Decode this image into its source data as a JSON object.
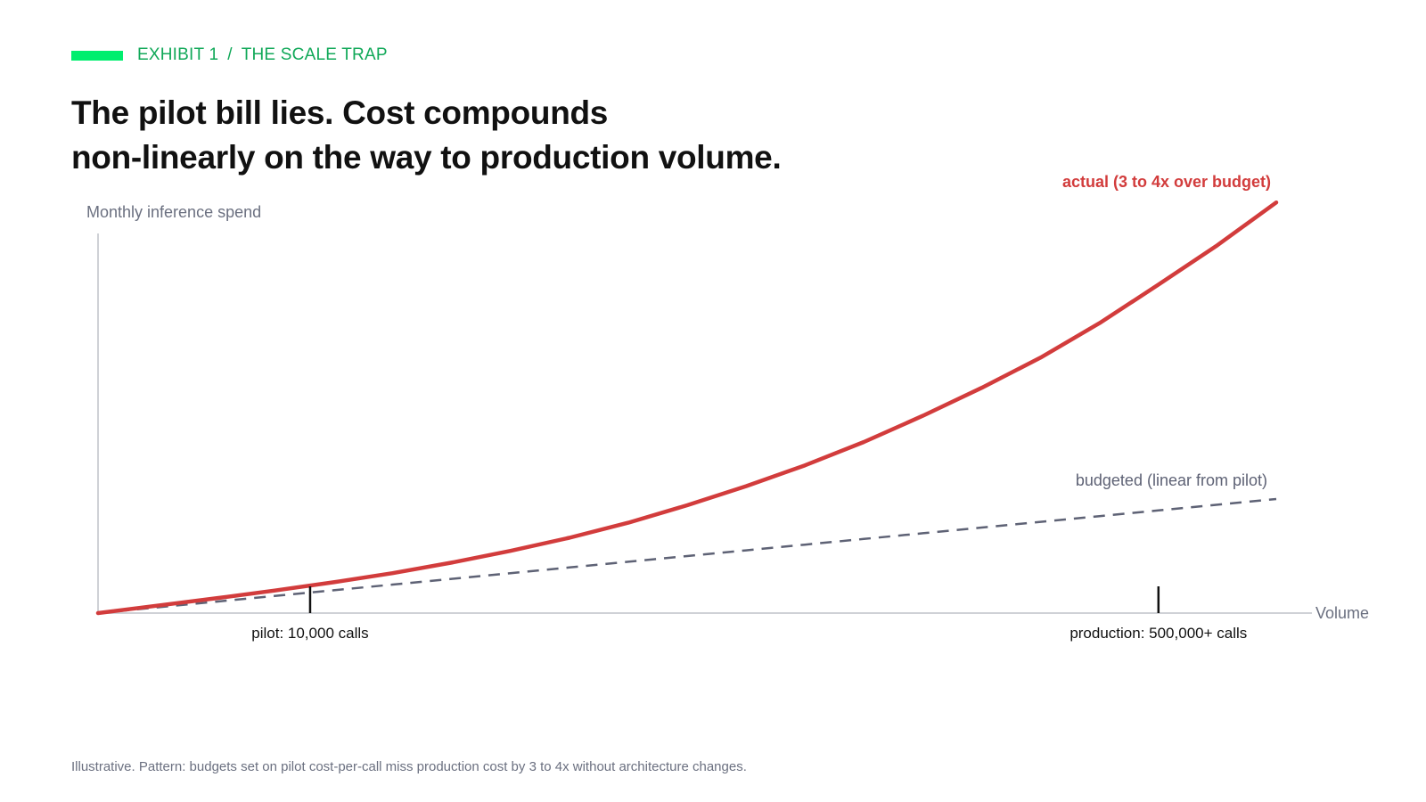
{
  "eyebrow": {
    "exhibit": "EXHIBIT 1",
    "separator": "/",
    "topic": "THE SCALE TRAP"
  },
  "headline": {
    "line1": "The pilot bill lies. Cost compounds",
    "line2": "non-linearly on the way to production volume."
  },
  "footnote": "Illustrative. Pattern: budgets set on pilot cost-per-call miss production cost by 3 to 4x without architecture changes.",
  "colors": {
    "accent_bar": "#00ee6e",
    "eyebrow_text": "#10a858",
    "actual": "#d23c3c",
    "budgeted": "#5e6275",
    "axis": "#cfd1d6",
    "axis_label": "#6b7080",
    "marker": "#111111",
    "text_dark": "#111111"
  },
  "chart_data": {
    "type": "line",
    "title": "",
    "xlabel": "Volume",
    "ylabel": "Monthly inference spend",
    "grid": false,
    "x": [
      0,
      0.05,
      0.1,
      0.15,
      0.2,
      0.25,
      0.3,
      0.35,
      0.4,
      0.45,
      0.5,
      0.55,
      0.6,
      0.65,
      0.7,
      0.75,
      0.8,
      0.85,
      0.9,
      0.95,
      1.0
    ],
    "series": [
      {
        "name": "actual (3 to 4x over budget)",
        "style": "solid",
        "values": [
          0,
          0.026,
          0.052,
          0.079,
          0.108,
          0.14,
          0.177,
          0.218,
          0.264,
          0.317,
          0.378,
          0.445,
          0.518,
          0.6,
          0.692,
          0.79,
          0.896,
          1.017,
          1.152,
          1.29,
          1.44
        ]
      },
      {
        "name": "budgeted (linear from pilot)",
        "style": "dashed",
        "values": [
          0,
          0.02,
          0.04,
          0.06,
          0.08,
          0.1,
          0.12,
          0.14,
          0.16,
          0.18,
          0.2,
          0.22,
          0.24,
          0.26,
          0.28,
          0.3,
          0.32,
          0.34,
          0.36,
          0.38,
          0.4
        ]
      }
    ],
    "markers": [
      {
        "label": "pilot: 10,000 calls",
        "x": 0.18
      },
      {
        "label": "production: 500,000+ calls",
        "x": 0.9
      }
    ]
  }
}
